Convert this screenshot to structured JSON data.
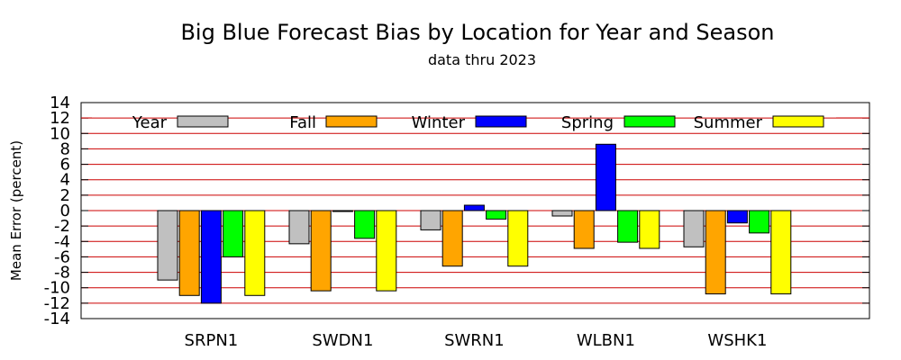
{
  "chart_data": {
    "type": "bar",
    "title": "Big Blue Forecast Bias by Location for Year and Season",
    "subtitle": "data thru 2023",
    "xlabel": "",
    "ylabel": "Mean Error (percent)",
    "ylim": [
      -14,
      14
    ],
    "yticks": [
      "14",
      "12",
      "10",
      "8",
      "6",
      "4",
      "2",
      "0",
      "-2",
      "-4",
      "-6",
      "-8",
      "-10",
      "-12",
      "-14"
    ],
    "grid": true,
    "legend_position": "top",
    "categories": [
      "SRPN1",
      "SWDN1",
      "SWRN1",
      "WLBN1",
      "WSHK1"
    ],
    "series": [
      {
        "name": "Year",
        "color": "#c0c0c0",
        "values": [
          -9.0,
          -4.3,
          -2.5,
          -0.7,
          -4.7
        ]
      },
      {
        "name": "Fall",
        "color": "#ffa500",
        "values": [
          -11.0,
          -10.4,
          -7.2,
          -4.9,
          -10.8
        ]
      },
      {
        "name": "Winter",
        "color": "#0000ff",
        "values": [
          -12.0,
          -0.1,
          0.7,
          8.6,
          -1.6
        ]
      },
      {
        "name": "Spring",
        "color": "#00ff00",
        "values": [
          -6.0,
          -3.6,
          -1.1,
          -4.1,
          -2.9
        ]
      },
      {
        "name": "Summer",
        "color": "#ffff00",
        "values": [
          -11.0,
          -10.4,
          -7.2,
          -4.9,
          -10.8
        ]
      }
    ],
    "gridline_color": "#cc0000"
  }
}
